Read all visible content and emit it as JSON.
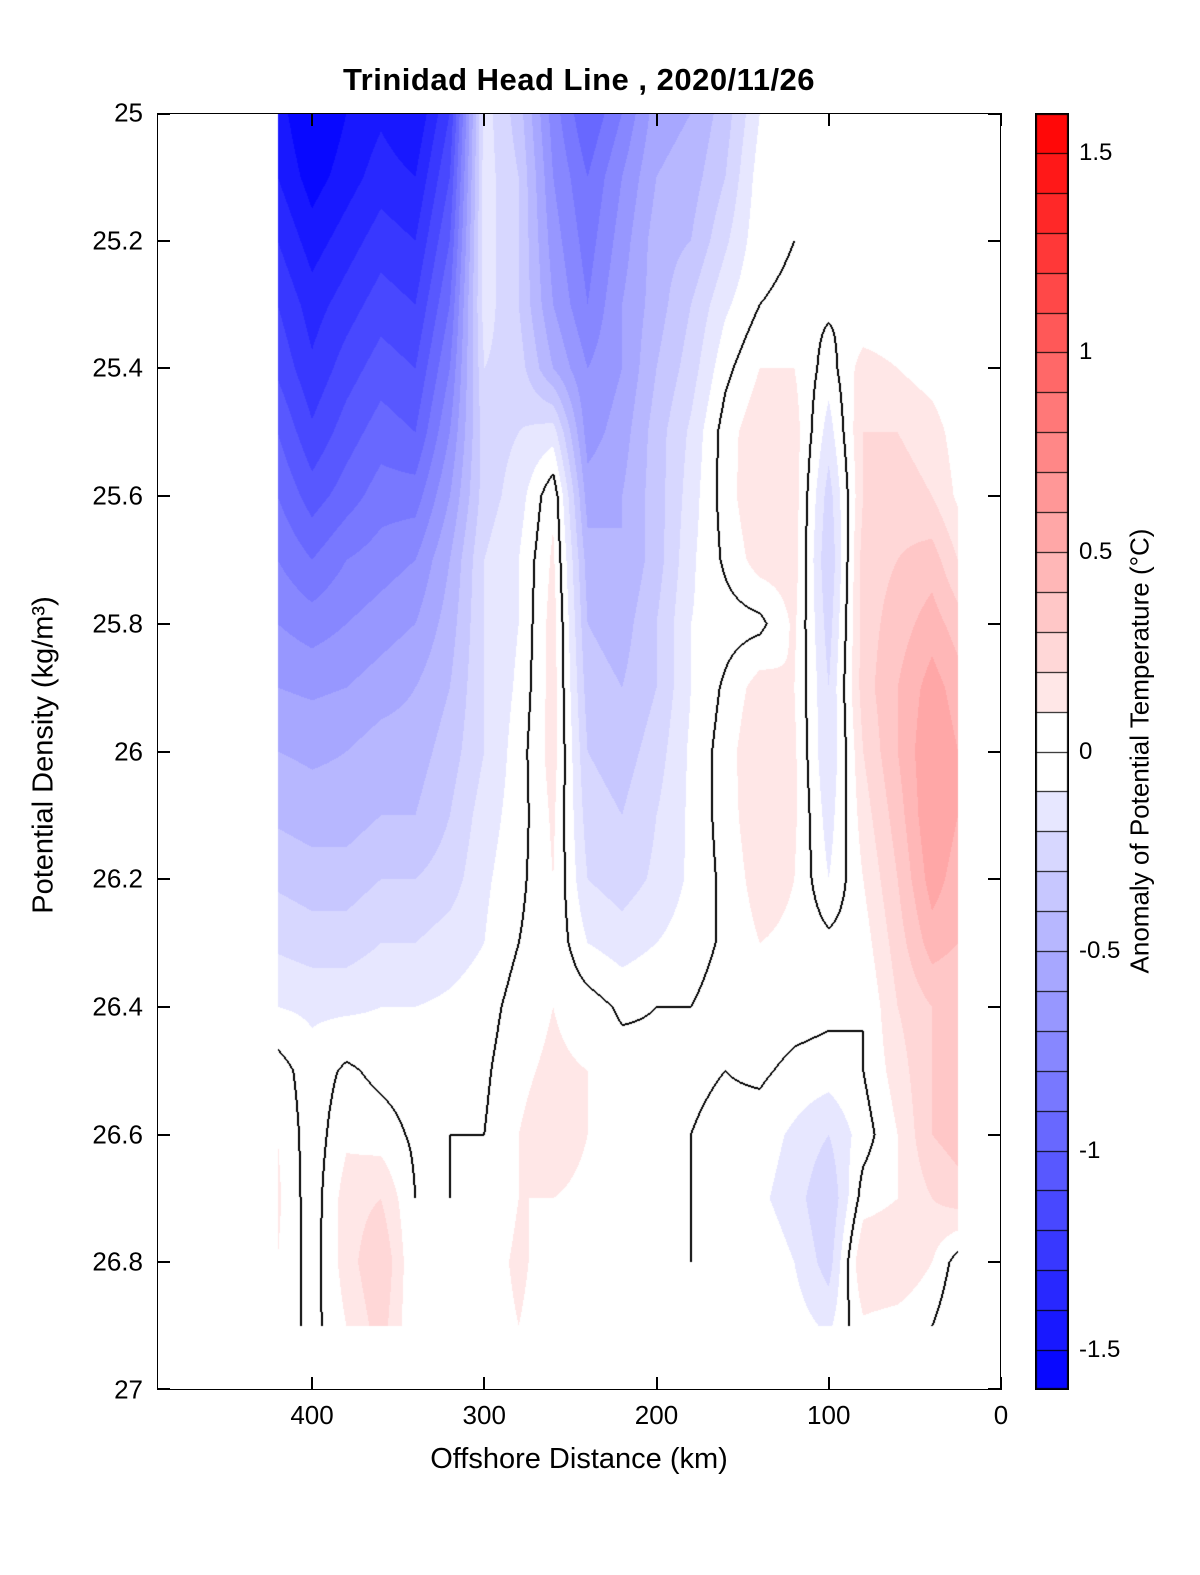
{
  "title": "Trinidad Head Line , 2020/11/26",
  "axes": {
    "x_label": "Offshore Distance (km)",
    "y_label": "Potential Density (kg/m³)",
    "x_ticks": [
      400,
      300,
      200,
      100,
      0
    ],
    "x_tick_labels": [
      "400",
      "300",
      "200",
      "100",
      "0"
    ],
    "x_range": [
      490,
      0
    ],
    "x_reversed": true,
    "y_ticks": [
      25,
      25.2,
      25.4,
      25.6,
      25.8,
      26,
      26.2,
      26.4,
      26.6,
      26.8,
      27
    ],
    "y_tick_labels": [
      "25",
      "25.2",
      "25.4",
      "25.6",
      "25.8",
      "26",
      "26.2",
      "26.4",
      "26.6",
      "26.8",
      "27"
    ],
    "y_range": [
      25,
      27
    ],
    "y_reversed_downward": true,
    "box_on": true,
    "ticks_direction": "in"
  },
  "colorbar": {
    "label": "Anomaly of Potential Temperature (°C)",
    "min": -1.6,
    "max": 1.6,
    "step": 0.1,
    "ticks": [
      1.5,
      1,
      0.5,
      0,
      -0.5,
      -1,
      -1.5
    ],
    "tick_labels": [
      "1.5",
      "1",
      "0.5",
      "0",
      "-0.5",
      "-1",
      "-1.5"
    ],
    "positive_color": "#FF0000",
    "negative_color": "#0000FF",
    "zero_color": "#FFFFFF",
    "segment_border_color": "#000000"
  },
  "chart_data": {
    "type": "filled_contour",
    "title": "Trinidad Head Line , 2020/11/26",
    "xlabel": "Offshore Distance (km)",
    "ylabel": "Potential Density (kg/m³)",
    "zlabel": "Anomaly of Potential Temperature (°C)",
    "contour_line_level": 0,
    "level_step": 0.1,
    "data_extent": {
      "x_km": [
        420,
        25
      ],
      "density": [
        25.0,
        26.9
      ]
    },
    "x_stations_km": [
      420,
      400,
      380,
      360,
      340,
      320,
      300,
      280,
      260,
      240,
      220,
      200,
      180,
      160,
      140,
      120,
      100,
      80,
      60,
      40,
      25
    ],
    "density_levels": [
      25.0,
      25.1,
      25.2,
      25.3,
      25.4,
      25.5,
      25.6,
      25.7,
      25.8,
      25.9,
      26.0,
      26.1,
      26.2,
      26.3,
      26.4,
      26.5,
      26.6,
      26.7,
      26.8,
      26.9
    ],
    "anomaly_grid": [
      [
        -1.45,
        -1.62,
        -1.5,
        -1.42,
        -1.5,
        -1.2,
        -0.15,
        -0.35,
        -0.75,
        -1.0,
        -0.8,
        -0.55,
        -0.5,
        -0.35,
        -0.1,
        0,
        0,
        0,
        0,
        0,
        0
      ],
      [
        -1.4,
        -1.55,
        -1.45,
        -1.35,
        -1.4,
        -1.1,
        -0.15,
        -0.3,
        -0.7,
        -0.9,
        -0.7,
        -0.5,
        -0.45,
        -0.3,
        -0.05,
        0,
        0,
        0,
        0,
        0,
        0
      ],
      [
        -1.3,
        -1.45,
        -1.35,
        -1.25,
        -1.3,
        -1.0,
        -0.15,
        -0.3,
        -0.65,
        -0.85,
        -0.65,
        -0.45,
        -0.4,
        -0.22,
        -0.03,
        0,
        0,
        0,
        0,
        0,
        0
      ],
      [
        -1.2,
        -1.35,
        -1.25,
        -1.15,
        -1.2,
        -0.9,
        -0.15,
        -0.3,
        -0.6,
        -0.8,
        -0.6,
        -0.45,
        -0.3,
        -0.12,
        0,
        0.02,
        0.02,
        0,
        0,
        0,
        0
      ],
      [
        -1.12,
        -1.28,
        -1.15,
        -1.05,
        -1.1,
        -0.8,
        -0.2,
        -0.25,
        -0.5,
        -0.7,
        -0.6,
        -0.4,
        -0.25,
        -0.03,
        0.1,
        0.1,
        -0.05,
        0.15,
        0.1,
        0.05,
        0
      ],
      [
        -1.0,
        -1.18,
        -1.05,
        -0.95,
        -1.0,
        -0.7,
        -0.25,
        -0.2,
        -0.15,
        -0.65,
        -0.55,
        -0.35,
        -0.18,
        0.05,
        0.18,
        0.15,
        -0.15,
        0.2,
        0.2,
        0.15,
        0.05
      ],
      [
        -0.9,
        -1.05,
        -0.95,
        -0.85,
        -0.85,
        -0.6,
        -0.25,
        -0.15,
        0.08,
        -0.55,
        -0.5,
        -0.35,
        -0.15,
        0.05,
        0.2,
        0.15,
        -0.25,
        0.2,
        0.25,
        0.2,
        0.08
      ],
      [
        -0.8,
        -0.9,
        -0.8,
        -0.75,
        -0.7,
        -0.5,
        -0.2,
        -0.1,
        0.12,
        -0.45,
        -0.5,
        -0.35,
        -0.12,
        0.02,
        0.15,
        0.15,
        -0.3,
        0.25,
        0.3,
        0.35,
        0.2
      ],
      [
        -0.7,
        -0.75,
        -0.7,
        -0.65,
        -0.6,
        -0.45,
        -0.2,
        -0.1,
        0.15,
        -0.4,
        -0.45,
        -0.3,
        -0.1,
        -0.05,
        -0.03,
        0.12,
        -0.25,
        0.25,
        0.35,
        0.45,
        0.35
      ],
      [
        -0.6,
        -0.62,
        -0.6,
        -0.55,
        -0.5,
        -0.4,
        -0.2,
        -0.08,
        0.15,
        -0.35,
        -0.4,
        -0.3,
        -0.1,
        0.02,
        0.15,
        0.1,
        -0.2,
        0.25,
        0.4,
        0.55,
        0.45
      ],
      [
        -0.5,
        -0.52,
        -0.5,
        -0.45,
        -0.45,
        -0.35,
        -0.2,
        -0.05,
        0.15,
        -0.3,
        -0.35,
        -0.25,
        -0.08,
        0.05,
        0.2,
        0.12,
        -0.2,
        0.2,
        0.4,
        0.6,
        0.5
      ],
      [
        -0.42,
        -0.45,
        -0.45,
        -0.4,
        -0.4,
        -0.3,
        -0.15,
        -0.05,
        0.12,
        -0.25,
        -0.3,
        -0.2,
        -0.08,
        0.05,
        0.18,
        0.12,
        -0.15,
        0.15,
        0.35,
        0.6,
        0.5
      ],
      [
        -0.32,
        -0.35,
        -0.35,
        -0.3,
        -0.3,
        -0.25,
        -0.12,
        -0.03,
        0.1,
        -0.2,
        -0.25,
        -0.18,
        -0.08,
        0.03,
        0.15,
        0.1,
        -0.1,
        0.1,
        0.3,
        0.55,
        0.45
      ],
      [
        -0.22,
        -0.25,
        -0.25,
        -0.2,
        -0.2,
        -0.15,
        -0.1,
        0,
        0.08,
        -0.1,
        -0.15,
        -0.1,
        -0.05,
        0.02,
        0.1,
        0.08,
        0.03,
        0.05,
        0.25,
        0.45,
        0.4
      ],
      [
        -0.1,
        -0.12,
        -0.12,
        -0.1,
        -0.1,
        -0.08,
        -0.05,
        0.05,
        0.1,
        0.05,
        -0.02,
        0,
        0,
        0.05,
        0.08,
        0.05,
        0.03,
        0,
        0.2,
        0.3,
        0.3
      ],
      [
        0.05,
        -0.06,
        0.02,
        -0.03,
        -0.05,
        -0.03,
        -0.02,
        0.08,
        0.12,
        0.1,
        0.05,
        0.03,
        0.02,
        0,
        0.02,
        -0.03,
        -0.05,
        0,
        0.15,
        0.3,
        0.35
      ],
      [
        0.1,
        -0.06,
        0.08,
        0.05,
        -0.02,
        0,
        0,
        0.1,
        0.15,
        0.1,
        0.05,
        0.03,
        0,
        -0.03,
        -0.05,
        -0.12,
        -0.2,
        -0.05,
        0.1,
        0.3,
        0.35
      ],
      [
        0.12,
        -0.06,
        0.15,
        0.2,
        0,
        0,
        0.02,
        0.1,
        0.1,
        0.08,
        0.05,
        0.02,
        0,
        -0.03,
        -0.08,
        -0.15,
        -0.3,
        0.05,
        0.1,
        0.2,
        0.25
      ],
      [
        0.1,
        -0.05,
        0.15,
        0.3,
        0,
        0,
        0.05,
        0.12,
        0.05,
        0.05,
        0.03,
        0,
        0,
        0,
        -0.03,
        -0.1,
        -0.25,
        0.2,
        0.2,
        0.1,
        -0.05
      ],
      [
        0.08,
        -0.04,
        0.1,
        0.25,
        0,
        0,
        0.05,
        0.1,
        0.05,
        0.03,
        0.02,
        0,
        0,
        0,
        0,
        -0.05,
        -0.12,
        0.08,
        0.05,
        0,
        -0.1
      ]
    ]
  }
}
